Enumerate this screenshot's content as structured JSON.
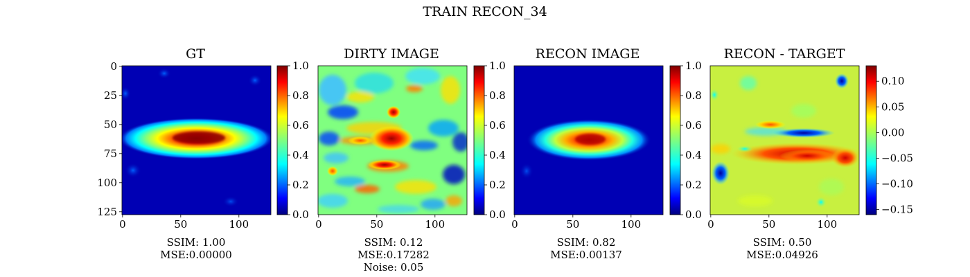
{
  "suptitle": "TRAIN RECON_34",
  "colormaps": {
    "jet": [
      "#00007f",
      "#0000ff",
      "#007fff",
      "#00ffff",
      "#7fff7f",
      "#ffff00",
      "#ff7f00",
      "#ff0000",
      "#7f0000"
    ]
  },
  "chart_data": [
    {
      "type": "heatmap",
      "title": "GT",
      "image_size": [
        128,
        128
      ],
      "content": "elongated horizontal elliptical source centered near (64, 62) on dark blue background with faint blobs",
      "x_ticks": [
        "0",
        "50",
        "100"
      ],
      "y_ticks": [
        "0",
        "25",
        "50",
        "75",
        "100",
        "125"
      ],
      "colorbar": {
        "range": [
          0.0,
          1.0
        ],
        "ticks": [
          "0.0",
          "0.2",
          "0.4",
          "0.6",
          "0.8",
          "1.0"
        ]
      },
      "caption": [
        "SSIM: 1.00",
        "MSE:0.00000"
      ]
    },
    {
      "type": "heatmap",
      "title": "DIRTY IMAGE",
      "image_size": [
        128,
        128
      ],
      "content": "noisy cyan/green field with red peak near (64, 62) and streaks",
      "x_ticks": [
        "0",
        "50",
        "100"
      ],
      "colorbar": {
        "range": [
          0.0,
          1.0
        ],
        "ticks": [
          "0.0",
          "0.2",
          "0.4",
          "0.6",
          "0.8",
          "1.0"
        ]
      },
      "caption": [
        "SSIM: 0.12",
        "MSE:0.17282",
        "Noise: 0.05"
      ]
    },
    {
      "type": "heatmap",
      "title": "RECON IMAGE",
      "image_size": [
        128,
        128
      ],
      "content": "smooth elliptical source centered near (64, 64) on dark blue background",
      "x_ticks": [
        "0",
        "50",
        "100"
      ],
      "colorbar": {
        "range": [
          0.0,
          1.0
        ],
        "ticks": [
          "0.0",
          "0.2",
          "0.4",
          "0.6",
          "0.8",
          "1.0"
        ]
      },
      "caption": [
        "SSIM: 0.82",
        "MSE:0.00137"
      ]
    },
    {
      "type": "heatmap",
      "title": "RECON - TARGET",
      "image_size": [
        128,
        128
      ],
      "content": "residual map, mostly near zero with positive band below center and negative band above",
      "x_ticks": [
        "0",
        "50",
        "100"
      ],
      "colorbar": {
        "range": [
          -0.16,
          0.13
        ],
        "ticks": [
          "0.10",
          "0.05",
          "0.00",
          "−0.05",
          "−0.10",
          "−0.15"
        ],
        "tick_values": [
          0.1,
          0.05,
          0.0,
          -0.05,
          -0.1,
          -0.15
        ]
      },
      "caption": [
        "SSIM: 0.50",
        "MSE:0.04926"
      ]
    }
  ]
}
